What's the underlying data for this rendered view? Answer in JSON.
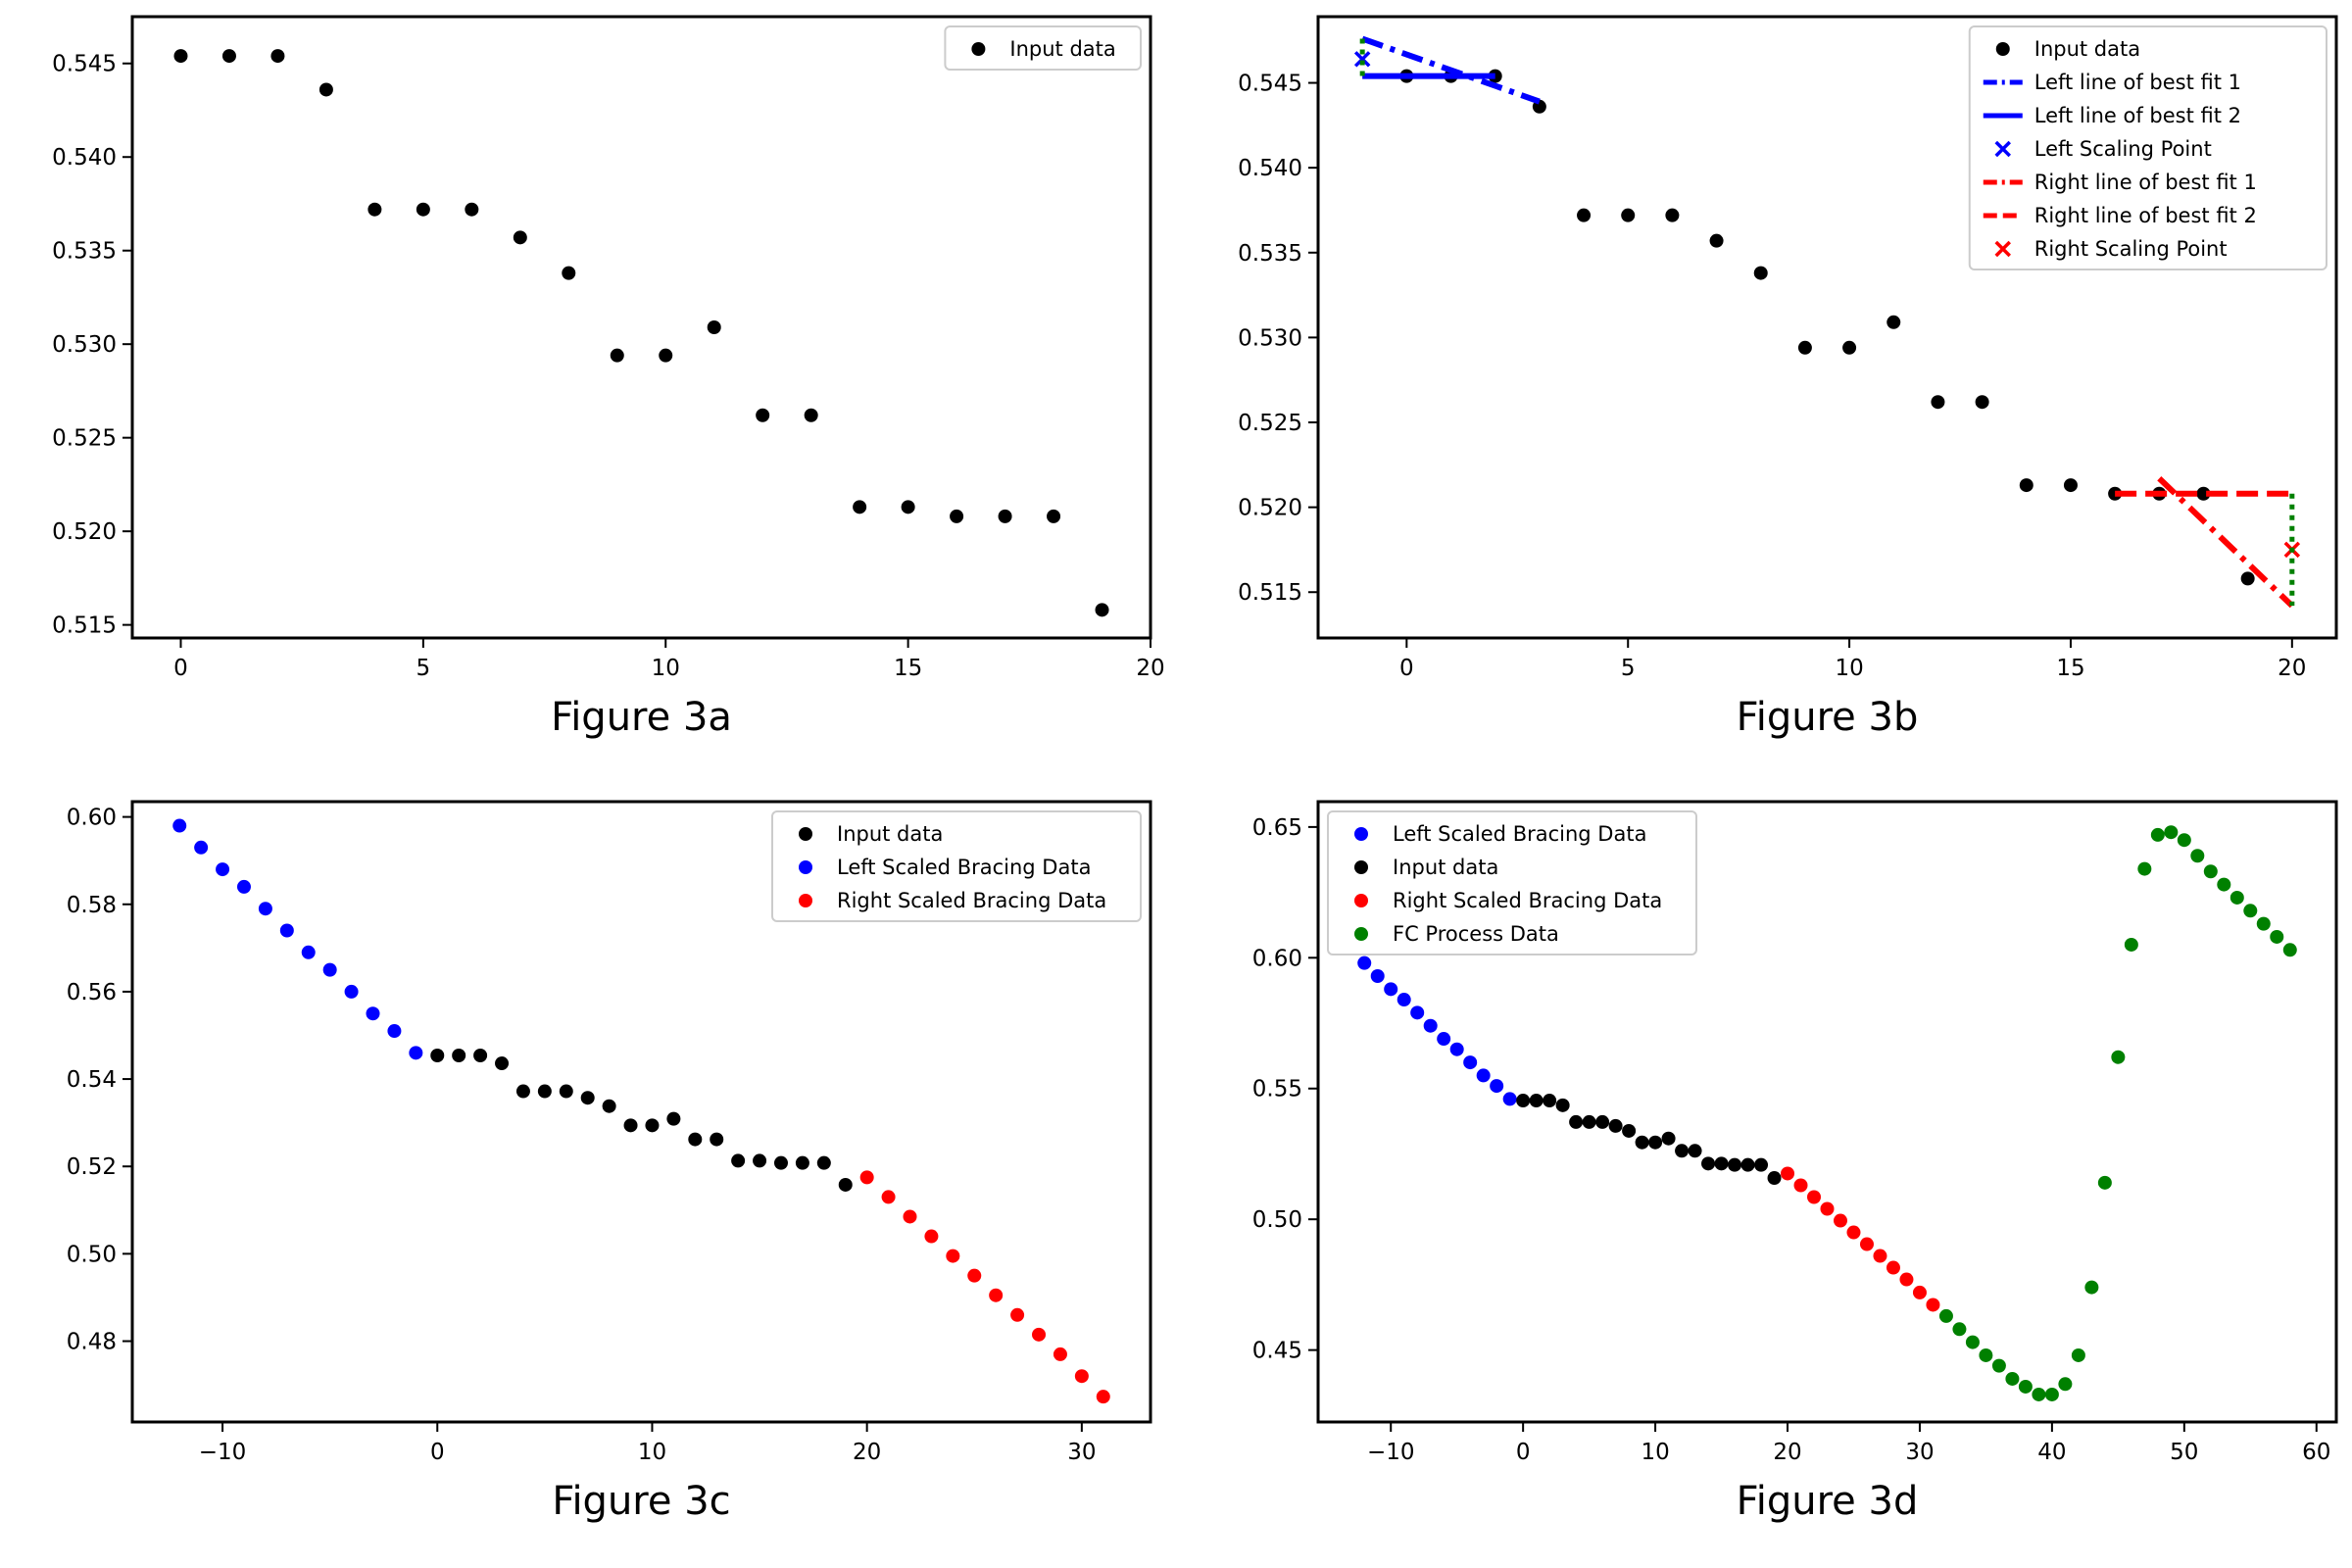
{
  "figure": {
    "colors": {
      "black": "#000000",
      "blue": "#0000ff",
      "red": "#ff0000",
      "green": "#008000"
    }
  },
  "chart_data": [
    {
      "type": "scatter",
      "title": "Figure 3a",
      "xlim": [
        -1,
        20
      ],
      "ylim": [
        0.5143,
        0.5475
      ],
      "xticks": [
        0,
        5,
        10,
        15,
        20
      ],
      "yticks": [
        0.515,
        0.52,
        0.525,
        0.53,
        0.535,
        0.54,
        0.545
      ],
      "ytick_decimals": 3,
      "legend": "top-right",
      "series": [
        {
          "name": "Input data",
          "color": "#000000",
          "marker": "dot",
          "x": [
            0,
            1,
            2,
            3,
            4,
            5,
            6,
            7,
            8,
            9,
            10,
            11,
            12,
            13,
            14,
            15,
            16,
            17,
            18,
            19
          ],
          "y": [
            0.5454,
            0.5454,
            0.5454,
            0.5436,
            0.5372,
            0.5372,
            0.5372,
            0.5357,
            0.5338,
            0.5294,
            0.5294,
            0.5309,
            0.5262,
            0.5262,
            0.5213,
            0.5213,
            0.5208,
            0.5208,
            0.5208,
            0.5158
          ]
        }
      ]
    },
    {
      "type": "scatter",
      "title": "Figure 3b",
      "xlim": [
        -2,
        21
      ],
      "ylim": [
        0.5123,
        0.5489
      ],
      "xticks": [
        0,
        5,
        10,
        15,
        20
      ],
      "yticks": [
        0.515,
        0.52,
        0.525,
        0.53,
        0.535,
        0.54,
        0.545
      ],
      "ytick_decimals": 3,
      "legend": "top-right",
      "series": [
        {
          "name": "Input data",
          "color": "#000000",
          "marker": "dot",
          "x": [
            0,
            1,
            2,
            3,
            4,
            5,
            6,
            7,
            8,
            9,
            10,
            11,
            12,
            13,
            14,
            15,
            16,
            17,
            18,
            19
          ],
          "y": [
            0.5454,
            0.5454,
            0.5454,
            0.5436,
            0.5372,
            0.5372,
            0.5372,
            0.5357,
            0.5338,
            0.5294,
            0.5294,
            0.5309,
            0.5262,
            0.5262,
            0.5213,
            0.5213,
            0.5208,
            0.5208,
            0.5208,
            0.5158
          ]
        },
        {
          "name": "Left line of best fit 1",
          "color": "#0000ff",
          "marker": "dashdot",
          "x": [
            -1,
            3
          ],
          "y": [
            0.5476,
            0.5439
          ]
        },
        {
          "name": "Left line of best fit 2",
          "color": "#0000ff",
          "marker": "solid",
          "x": [
            -1,
            2
          ],
          "y": [
            0.5454,
            0.5454
          ]
        },
        {
          "name": "Left Scaling Point",
          "color": "#0000ff",
          "marker": "x",
          "x": [
            -1
          ],
          "y": [
            0.5464
          ]
        },
        {
          "name": "Right line of best fit 1",
          "color": "#ff0000",
          "marker": "dashdot",
          "x": [
            17,
            20
          ],
          "y": [
            0.5217,
            0.5142
          ]
        },
        {
          "name": "Right line of best fit 2",
          "color": "#ff0000",
          "marker": "dashed",
          "x": [
            16,
            20
          ],
          "y": [
            0.5208,
            0.5208
          ]
        },
        {
          "name": "Right Scaling Point",
          "color": "#ff0000",
          "marker": "x",
          "x": [
            20
          ],
          "y": [
            0.5175
          ]
        },
        {
          "name": "",
          "color": "#008000",
          "marker": "dotted",
          "legend": false,
          "x": [
            -1,
            -1
          ],
          "y": [
            0.5476,
            0.5454
          ]
        },
        {
          "name": "",
          "color": "#008000",
          "marker": "dotted",
          "legend": false,
          "x": [
            20,
            20
          ],
          "y": [
            0.5208,
            0.5142
          ]
        }
      ]
    },
    {
      "type": "scatter",
      "title": "Figure 3c",
      "xlim": [
        -14.2,
        33.2
      ],
      "ylim": [
        0.4615,
        0.6035
      ],
      "xticks": [
        -10,
        0,
        10,
        20,
        30
      ],
      "yticks": [
        0.48,
        0.5,
        0.52,
        0.54,
        0.56,
        0.58,
        0.6
      ],
      "ytick_decimals": 2,
      "legend": "top-right",
      "series": [
        {
          "name": "Input data",
          "color": "#000000",
          "marker": "dot",
          "x": [
            0,
            1,
            2,
            3,
            4,
            5,
            6,
            7,
            8,
            9,
            10,
            11,
            12,
            13,
            14,
            15,
            16,
            17,
            18,
            19
          ],
          "y": [
            0.5454,
            0.5454,
            0.5454,
            0.5436,
            0.5372,
            0.5372,
            0.5372,
            0.5357,
            0.5338,
            0.5294,
            0.5294,
            0.5309,
            0.5262,
            0.5262,
            0.5213,
            0.5213,
            0.5208,
            0.5208,
            0.5208,
            0.5158
          ]
        },
        {
          "name": "Left Scaled Bracing Data",
          "color": "#0000ff",
          "marker": "dot",
          "x": [
            -12,
            -11,
            -10,
            -9,
            -8,
            -7,
            -6,
            -5,
            -4,
            -3,
            -2,
            -1
          ],
          "y": [
            0.598,
            0.593,
            0.588,
            0.584,
            0.579,
            0.574,
            0.569,
            0.565,
            0.56,
            0.555,
            0.551,
            0.546
          ]
        },
        {
          "name": "Right Scaled Bracing Data",
          "color": "#ff0000",
          "marker": "dot",
          "x": [
            20,
            21,
            22,
            23,
            24,
            25,
            26,
            27,
            28,
            29,
            30,
            31
          ],
          "y": [
            0.5175,
            0.513,
            0.5085,
            0.504,
            0.4995,
            0.495,
            0.4905,
            0.486,
            0.4815,
            0.477,
            0.472,
            0.4673
          ]
        }
      ]
    },
    {
      "type": "scatter",
      "title": "Figure 3d",
      "xlim": [
        -15.5,
        61.5
      ],
      "ylim": [
        0.4225,
        0.6597
      ],
      "xticks": [
        -10,
        0,
        10,
        20,
        30,
        40,
        50,
        60
      ],
      "yticks": [
        0.45,
        0.5,
        0.55,
        0.6,
        0.65
      ],
      "ytick_decimals": 2,
      "legend": "top-left",
      "series": [
        {
          "name": "Left Scaled Bracing Data",
          "color": "#0000ff",
          "marker": "dot",
          "x": [
            -12,
            -11,
            -10,
            -9,
            -8,
            -7,
            -6,
            -5,
            -4,
            -3,
            -2,
            -1
          ],
          "y": [
            0.598,
            0.593,
            0.588,
            0.584,
            0.579,
            0.574,
            0.569,
            0.565,
            0.56,
            0.555,
            0.551,
            0.546
          ]
        },
        {
          "name": "Input data",
          "color": "#000000",
          "marker": "dot",
          "x": [
            0,
            1,
            2,
            3,
            4,
            5,
            6,
            7,
            8,
            9,
            10,
            11,
            12,
            13,
            14,
            15,
            16,
            17,
            18,
            19
          ],
          "y": [
            0.5454,
            0.5454,
            0.5454,
            0.5436,
            0.5372,
            0.5372,
            0.5372,
            0.5357,
            0.5338,
            0.5294,
            0.5294,
            0.5309,
            0.5262,
            0.5262,
            0.5213,
            0.5213,
            0.5208,
            0.5208,
            0.5208,
            0.5158
          ]
        },
        {
          "name": "Right Scaled Bracing Data",
          "color": "#ff0000",
          "marker": "dot",
          "x": [
            20,
            21,
            22,
            23,
            24,
            25,
            26,
            27,
            28,
            29,
            30,
            31
          ],
          "y": [
            0.5175,
            0.513,
            0.5085,
            0.504,
            0.4995,
            0.495,
            0.4905,
            0.486,
            0.4815,
            0.477,
            0.472,
            0.4673
          ]
        },
        {
          "name": "FC Process Data",
          "color": "#008000",
          "marker": "dot",
          "x": [
            32,
            33,
            34,
            35,
            36,
            37,
            38,
            39,
            40,
            41,
            42,
            43,
            44,
            45,
            46,
            47,
            48,
            49,
            50,
            51,
            52,
            53,
            54,
            55,
            56,
            57,
            58
          ],
          "y": [
            0.463,
            0.458,
            0.453,
            0.448,
            0.444,
            0.439,
            0.436,
            0.433,
            0.433,
            0.437,
            0.448,
            0.474,
            0.514,
            0.562,
            0.605,
            0.634,
            0.647,
            0.648,
            0.645,
            0.639,
            0.633,
            0.628,
            0.623,
            0.618,
            0.613,
            0.608,
            0.603
          ]
        }
      ]
    }
  ]
}
